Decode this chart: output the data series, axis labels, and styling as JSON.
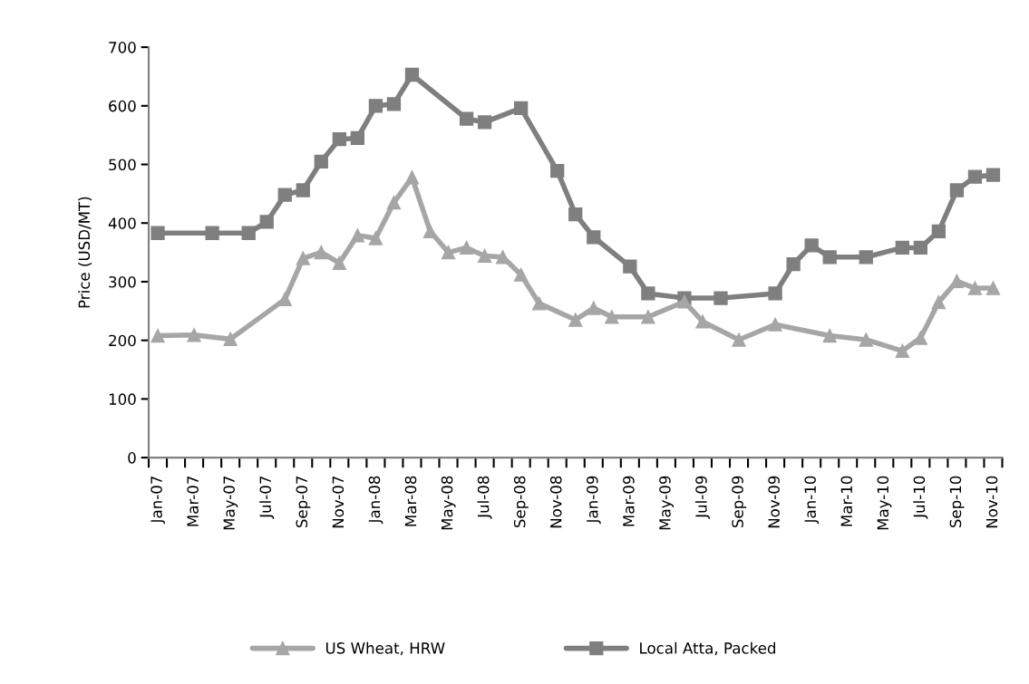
{
  "chart_data": {
    "type": "line",
    "ylabel": "Price (USD/MT)",
    "categories": [
      "Jan-07",
      null,
      "Mar-07",
      null,
      "May-07",
      null,
      "Jul-07",
      null,
      "Sep-07",
      null,
      "Nov-07",
      null,
      "Jan-08",
      null,
      "Mar-08",
      null,
      "May-08",
      null,
      "Jul-08",
      null,
      "Sep-08",
      null,
      "Nov-08",
      null,
      "Jan-09",
      null,
      "Mar-09",
      null,
      "May-09",
      null,
      "Jul-09",
      null,
      "Sep-09",
      null,
      "Nov-09",
      null,
      "Jan-10",
      null,
      "Mar-10",
      null,
      "May-10",
      null,
      "Jul-10",
      null,
      "Sep-10",
      null,
      "Nov-10"
    ],
    "series": [
      {
        "name": "US Wheat, HRW",
        "color": "#a6a6a6",
        "marker": "triangle",
        "values": [
          208,
          null,
          209,
          null,
          202,
          null,
          null,
          270,
          340,
          350,
          332,
          379,
          374,
          435,
          478,
          386,
          350,
          358,
          344,
          342,
          312,
          263,
          null,
          235,
          255,
          240,
          null,
          240,
          null,
          266,
          232,
          null,
          201,
          null,
          227,
          null,
          null,
          208,
          null,
          201,
          null,
          182,
          204,
          265,
          301,
          289,
          289
        ]
      },
      {
        "name": "Local Atta, Packed",
        "color": "#7f7f7f",
        "marker": "square",
        "values": [
          383,
          null,
          null,
          383,
          null,
          383,
          402,
          448,
          456,
          505,
          543,
          545,
          600,
          603,
          653,
          null,
          null,
          578,
          572,
          null,
          596,
          null,
          489,
          415,
          376,
          null,
          326,
          280,
          null,
          272,
          null,
          272,
          null,
          null,
          280,
          330,
          362,
          342,
          null,
          342,
          null,
          358,
          358,
          386,
          456,
          479,
          482
        ]
      }
    ],
    "ylim": [
      0,
      700
    ],
    "yticks": [
      0,
      100,
      200,
      300,
      400,
      500,
      600,
      700
    ],
    "grid": false,
    "legend": "bottom",
    "line_style": "solid"
  }
}
